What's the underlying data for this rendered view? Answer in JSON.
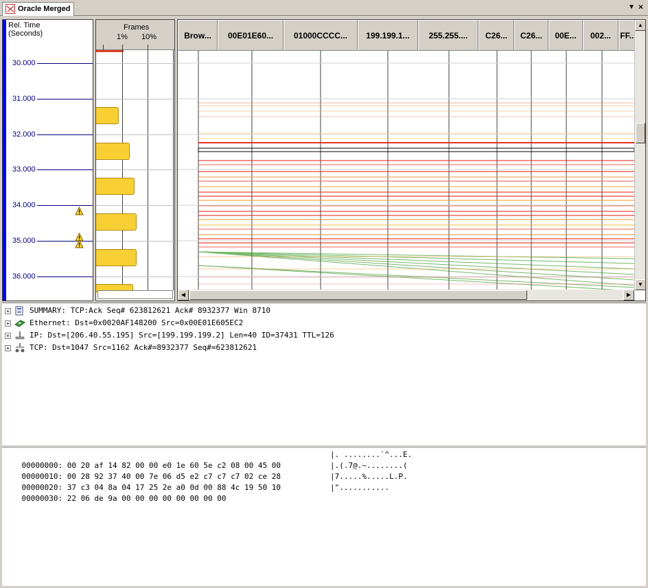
{
  "tab": {
    "title": "Oracle Merged"
  },
  "timeaxis": {
    "header_line1": "Rel. Time",
    "header_line2": "(Seconds)",
    "ticks": [
      "30.000",
      "31.000",
      "32.000",
      "33.000",
      "34.000",
      "35.000",
      "36.000"
    ]
  },
  "frames": {
    "title": "Frames",
    "label_1pct": "1%",
    "label_10pct": "10%"
  },
  "flow": {
    "columns": [
      "Brow...",
      "00E01E60...",
      "01000CCCC...",
      "199.199.1...",
      "255.255....",
      "C26...",
      "C26...",
      "00E...",
      "002...",
      "FF..."
    ]
  },
  "detail": {
    "rows": [
      {
        "text": "SUMMARY: TCP:Ack Seq# 623812621 Ack# 8932377 Win 8710",
        "icon": "summary-icon"
      },
      {
        "text": "Ethernet: Dst=0x0020AF148200 Src=0x00E01E605EC2",
        "icon": "ethernet-icon"
      },
      {
        "text": "IP: Dst=[206.40.55.195] Src=[199.199.199.2] Len=40 ID=37431 TTL=126",
        "icon": "ip-icon"
      },
      {
        "text": "TCP: Dst=1047 Src=1162 Ack#=8932377 Seq#=623812621",
        "icon": "tcp-icon"
      }
    ]
  },
  "hex": {
    "rows": [
      {
        "offset": "00000000:",
        "bytes": "00 20 af 14 82 00 00 e0 1e 60 5e c2 08 00 45 00",
        "ascii": "|. ........`^...E."
      },
      {
        "offset": "00000010:",
        "bytes": "00 28 92 37 40 00 7e 06 d5 e2 c7 c7 c7 02 ce 28",
        "ascii": "|.(.7@.~........("
      },
      {
        "offset": "00000020:",
        "bytes": "37 c3 04 8a 04 17 25 2e a0 0d 00 88 4c 19 50 10",
        "ascii": "|7.....%.....L.P."
      },
      {
        "offset": "00000030:",
        "bytes": "22 06 de 9a 00 00 00 00 00 00 00 00",
        "ascii": "|\"..........."
      }
    ]
  },
  "colors": {
    "accent_blue": "#0000ff",
    "bar_yellow": "#f9d033",
    "flow_red": "#e83020",
    "flow_green": "#3a9a2a"
  }
}
